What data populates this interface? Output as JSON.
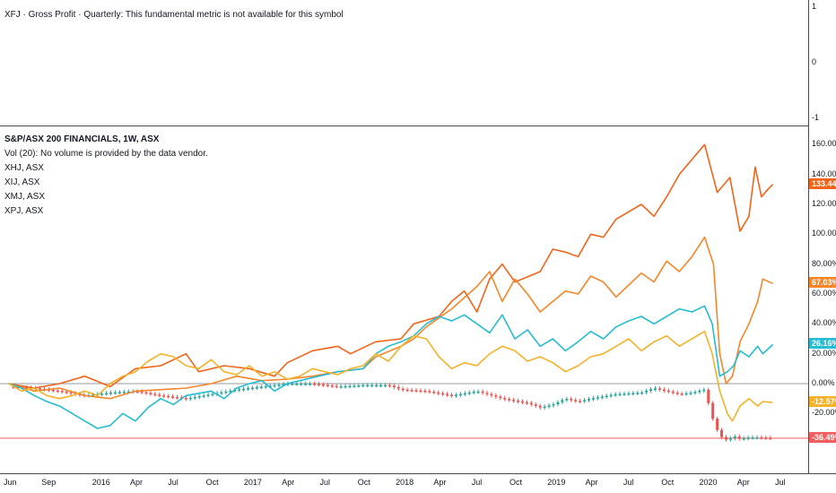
{
  "top_pane": {
    "message": "XFJ · Gross Profit · Quarterly: This fundamental metric is not available for this symbol",
    "ticks": [
      "1",
      "0",
      "-1"
    ]
  },
  "main_pane": {
    "title": "S&P/ASX 200 FINANCIALS, 1W, ASX",
    "volume_note": "Vol (20): No volume is provided by the data vendor.",
    "symbols": [
      "XHJ, ASX",
      "XIJ, ASX",
      "XMJ, ASX",
      "XPJ, ASX"
    ]
  },
  "colors": {
    "XHJ": "#f26419",
    "XIJ": "#f5862a",
    "XMJ": "#26bcd4",
    "XPJ": "#f4b22a",
    "candle_up": "#26a69a",
    "candle_down": "#ef5350",
    "zero_line": "#9598a1",
    "last_price_line": "#f25d5d"
  },
  "chart_data": {
    "type": "line",
    "title": "S&P/ASX 200 FINANCIALS, 1W, ASX",
    "y_unit": "%",
    "ylim": [
      -45,
      168
    ],
    "y_ticks": [
      "160.00%",
      "140.00%",
      "120.00%",
      "100.00%",
      "80.00%",
      "60.00%",
      "40.00%",
      "20.00%",
      "0.00%",
      "-20.00%"
    ],
    "x_ticks": [
      "Jun",
      "Sep",
      "2016",
      "Apr",
      "Jul",
      "Oct",
      "2017",
      "Apr",
      "Jul",
      "Oct",
      "2018",
      "Apr",
      "Jul",
      "Oct",
      "2019",
      "Apr",
      "Jul",
      "Oct",
      "2020",
      "Apr",
      "Jul"
    ],
    "x_ticks_pos": [
      0,
      3,
      7,
      10,
      13,
      16,
      19,
      22,
      25,
      28,
      31,
      34,
      37,
      40,
      43,
      46,
      49,
      52,
      55,
      58,
      61
    ],
    "series": [
      {
        "name": "XHJ, ASX",
        "key": "XHJ",
        "last_label": "133.44%",
        "points": [
          [
            0,
            0
          ],
          [
            2,
            -3
          ],
          [
            4,
            0
          ],
          [
            6,
            5
          ],
          [
            8,
            -2
          ],
          [
            10,
            10
          ],
          [
            12,
            12
          ],
          [
            14,
            20
          ],
          [
            15,
            8
          ],
          [
            17,
            12
          ],
          [
            19,
            10
          ],
          [
            21,
            5
          ],
          [
            22,
            14
          ],
          [
            24,
            22
          ],
          [
            26,
            25
          ],
          [
            27,
            20
          ],
          [
            29,
            28
          ],
          [
            31,
            30
          ],
          [
            32,
            40
          ],
          [
            34,
            45
          ],
          [
            35,
            55
          ],
          [
            36,
            62
          ],
          [
            37,
            48
          ],
          [
            38,
            70
          ],
          [
            39,
            80
          ],
          [
            40,
            68
          ],
          [
            42,
            75
          ],
          [
            43,
            90
          ],
          [
            44,
            88
          ],
          [
            45,
            85
          ],
          [
            46,
            100
          ],
          [
            47,
            98
          ],
          [
            48,
            110
          ],
          [
            49,
            115
          ],
          [
            50,
            120
          ],
          [
            51,
            112
          ],
          [
            52,
            125
          ],
          [
            53,
            140
          ],
          [
            54,
            150
          ],
          [
            55,
            160
          ],
          [
            56,
            128
          ],
          [
            57,
            138
          ],
          [
            57.8,
            102
          ],
          [
            58.5,
            112
          ],
          [
            59,
            145
          ],
          [
            59.5,
            125
          ],
          [
            60,
            130
          ],
          [
            60.4,
            133.44
          ]
        ]
      },
      {
        "name": "XIJ, ASX",
        "key": "XIJ",
        "last_label": "67.03%",
        "points": [
          [
            0,
            0
          ],
          [
            2,
            -5
          ],
          [
            4,
            -3
          ],
          [
            6,
            -8
          ],
          [
            8,
            -10
          ],
          [
            10,
            -5
          ],
          [
            12,
            -4
          ],
          [
            14,
            -3
          ],
          [
            16,
            0
          ],
          [
            18,
            5
          ],
          [
            20,
            2
          ],
          [
            22,
            3
          ],
          [
            24,
            5
          ],
          [
            26,
            8
          ],
          [
            28,
            10
          ],
          [
            29,
            18
          ],
          [
            31,
            25
          ],
          [
            32,
            30
          ],
          [
            33,
            38
          ],
          [
            35,
            50
          ],
          [
            37,
            65
          ],
          [
            38,
            75
          ],
          [
            39,
            55
          ],
          [
            40,
            70
          ],
          [
            41,
            60
          ],
          [
            42,
            48
          ],
          [
            43,
            55
          ],
          [
            44,
            62
          ],
          [
            45,
            60
          ],
          [
            46,
            72
          ],
          [
            47,
            68
          ],
          [
            48,
            58
          ],
          [
            49,
            66
          ],
          [
            50,
            74
          ],
          [
            51,
            68
          ],
          [
            52,
            82
          ],
          [
            53,
            75
          ],
          [
            54,
            85
          ],
          [
            55,
            98
          ],
          [
            55.7,
            80
          ],
          [
            56.2,
            20
          ],
          [
            56.7,
            0
          ],
          [
            57.2,
            5
          ],
          [
            57.8,
            28
          ],
          [
            58.5,
            40
          ],
          [
            59.2,
            55
          ],
          [
            59.6,
            70
          ],
          [
            60.4,
            67.03
          ]
        ]
      },
      {
        "name": "XMJ, ASX",
        "key": "XMJ",
        "last_label": "26.16%",
        "points": [
          [
            0,
            0
          ],
          [
            1,
            -3
          ],
          [
            2,
            -8
          ],
          [
            3,
            -12
          ],
          [
            4,
            -15
          ],
          [
            5,
            -20
          ],
          [
            6,
            -25
          ],
          [
            7,
            -30
          ],
          [
            8,
            -28
          ],
          [
            9,
            -20
          ],
          [
            10,
            -25
          ],
          [
            11,
            -16
          ],
          [
            12,
            -10
          ],
          [
            13,
            -14
          ],
          [
            14,
            -8
          ],
          [
            16,
            -5
          ],
          [
            17,
            -10
          ],
          [
            18,
            -3
          ],
          [
            19,
            0
          ],
          [
            20,
            2
          ],
          [
            21,
            -5
          ],
          [
            22,
            0
          ],
          [
            24,
            4
          ],
          [
            26,
            8
          ],
          [
            28,
            10
          ],
          [
            29,
            20
          ],
          [
            30,
            25
          ],
          [
            31,
            28
          ],
          [
            32,
            32
          ],
          [
            33,
            40
          ],
          [
            34,
            45
          ],
          [
            35,
            42
          ],
          [
            36,
            46
          ],
          [
            37,
            40
          ],
          [
            38,
            34
          ],
          [
            39,
            46
          ],
          [
            40,
            30
          ],
          [
            41,
            36
          ],
          [
            42,
            25
          ],
          [
            43,
            30
          ],
          [
            44,
            22
          ],
          [
            45,
            28
          ],
          [
            46,
            35
          ],
          [
            47,
            30
          ],
          [
            48,
            38
          ],
          [
            49,
            42
          ],
          [
            50,
            45
          ],
          [
            51,
            40
          ],
          [
            52,
            45
          ],
          [
            53,
            50
          ],
          [
            54,
            48
          ],
          [
            55,
            52
          ],
          [
            55.6,
            40
          ],
          [
            56.2,
            5
          ],
          [
            56.8,
            8
          ],
          [
            57.3,
            12
          ],
          [
            57.8,
            22
          ],
          [
            58.5,
            18
          ],
          [
            59.2,
            25
          ],
          [
            59.6,
            20
          ],
          [
            60.4,
            26.16
          ]
        ]
      },
      {
        "name": "XPJ, ASX",
        "key": "XPJ",
        "last_label": "-12.57%",
        "points": [
          [
            0,
            0
          ],
          [
            1,
            -5
          ],
          [
            2,
            -3
          ],
          [
            3,
            -8
          ],
          [
            4,
            -10
          ],
          [
            5,
            -8
          ],
          [
            6,
            -5
          ],
          [
            7,
            -8
          ],
          [
            8,
            0
          ],
          [
            9,
            5
          ],
          [
            10,
            8
          ],
          [
            11,
            15
          ],
          [
            12,
            20
          ],
          [
            13,
            18
          ],
          [
            14,
            12
          ],
          [
            15,
            10
          ],
          [
            16,
            16
          ],
          [
            17,
            8
          ],
          [
            18,
            6
          ],
          [
            19,
            12
          ],
          [
            20,
            5
          ],
          [
            21,
            8
          ],
          [
            22,
            3
          ],
          [
            23,
            5
          ],
          [
            24,
            10
          ],
          [
            25,
            8
          ],
          [
            26,
            6
          ],
          [
            27,
            10
          ],
          [
            28,
            12
          ],
          [
            29,
            20
          ],
          [
            30,
            15
          ],
          [
            31,
            25
          ],
          [
            32,
            32
          ],
          [
            33,
            30
          ],
          [
            34,
            18
          ],
          [
            35,
            10
          ],
          [
            36,
            14
          ],
          [
            37,
            12
          ],
          [
            38,
            20
          ],
          [
            39,
            25
          ],
          [
            40,
            22
          ],
          [
            41,
            15
          ],
          [
            42,
            18
          ],
          [
            43,
            14
          ],
          [
            44,
            8
          ],
          [
            45,
            12
          ],
          [
            46,
            18
          ],
          [
            47,
            20
          ],
          [
            48,
            25
          ],
          [
            49,
            30
          ],
          [
            50,
            22
          ],
          [
            51,
            28
          ],
          [
            52,
            32
          ],
          [
            53,
            25
          ],
          [
            54,
            30
          ],
          [
            55,
            35
          ],
          [
            55.6,
            20
          ],
          [
            56.2,
            -5
          ],
          [
            56.8,
            -20
          ],
          [
            57.2,
            -25
          ],
          [
            57.8,
            -15
          ],
          [
            58.5,
            -10
          ],
          [
            59.2,
            -15
          ],
          [
            59.6,
            -12
          ],
          [
            60.4,
            -12.57
          ]
        ]
      },
      {
        "name": "S&P/ASX 200 FINANCIALS, 1W, ASX",
        "key": "XFJ",
        "last_label": "-36.49%",
        "points": [
          [
            0,
            -2
          ],
          [
            2,
            -3
          ],
          [
            4,
            -5
          ],
          [
            6,
            -8
          ],
          [
            8,
            -6
          ],
          [
            10,
            -5
          ],
          [
            12,
            -8
          ],
          [
            14,
            -10
          ],
          [
            16,
            -7
          ],
          [
            18,
            -4
          ],
          [
            20,
            -2
          ],
          [
            22,
            0
          ],
          [
            24,
            0
          ],
          [
            26,
            -2
          ],
          [
            28,
            -1
          ],
          [
            30,
            -1
          ],
          [
            31,
            -4
          ],
          [
            33,
            -5
          ],
          [
            35,
            -8
          ],
          [
            37,
            -5
          ],
          [
            39,
            -10
          ],
          [
            41,
            -13
          ],
          [
            42,
            -16
          ],
          [
            43,
            -14
          ],
          [
            44,
            -10
          ],
          [
            45,
            -12
          ],
          [
            46,
            -10
          ],
          [
            48,
            -7
          ],
          [
            50,
            -6
          ],
          [
            51,
            -3
          ],
          [
            52,
            -5
          ],
          [
            53,
            -7
          ],
          [
            54,
            -6
          ],
          [
            55,
            -4
          ],
          [
            55.7,
            -25
          ],
          [
            56.2,
            -35
          ],
          [
            56.8,
            -38
          ],
          [
            57.3,
            -35
          ],
          [
            57.8,
            -37
          ],
          [
            58.5,
            -36
          ],
          [
            59.2,
            -36
          ],
          [
            60.4,
            -36.49
          ]
        ]
      }
    ]
  }
}
